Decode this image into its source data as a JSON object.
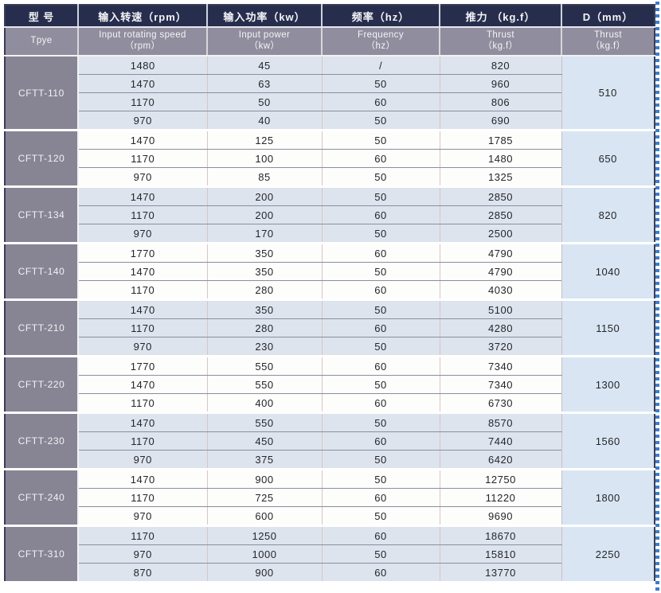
{
  "colors": {
    "header_navy": "#272e4d",
    "header_gray": "#908d9e",
    "model_column": "#878494",
    "row_blue": "#dde4ee",
    "row_white": "#fdfdfb",
    "d_column_blue": "#d9e5f2",
    "row_divider": "#87909f",
    "page_edge_dash_blue": "#3d7ccb"
  },
  "table": {
    "columns_row1": [
      "型 号",
      "输入转速（rpm）",
      "输入功率（kw）",
      "频率（hz）",
      "推力 （kg.f）",
      "D（mm）"
    ],
    "columns_row2": [
      {
        "l1": "Tpye",
        "l2": ""
      },
      {
        "l1": "Input rotating speed",
        "l2": "（rpm）"
      },
      {
        "l1": "Input power",
        "l2": "（kw）"
      },
      {
        "l1": "Frequency",
        "l2": "（hz）"
      },
      {
        "l1": "Thrust",
        "l2": "（kg.f）"
      },
      {
        "l1": "Thrust",
        "l2": "（kg.f）"
      }
    ],
    "groups": [
      {
        "model": "CFTT-110",
        "d": "510",
        "rows": [
          [
            "1480",
            "45",
            "/",
            "820"
          ],
          [
            "1470",
            "63",
            "50",
            "960"
          ],
          [
            "1170",
            "50",
            "60",
            "806"
          ],
          [
            "970",
            "40",
            "50",
            "690"
          ]
        ]
      },
      {
        "model": "CFTT-120",
        "d": "650",
        "rows": [
          [
            "1470",
            "125",
            "50",
            "1785"
          ],
          [
            "1170",
            "100",
            "60",
            "1480"
          ],
          [
            "970",
            "85",
            "50",
            "1325"
          ]
        ]
      },
      {
        "model": "CFTT-134",
        "d": "820",
        "rows": [
          [
            "1470",
            "200",
            "50",
            "2850"
          ],
          [
            "1170",
            "200",
            "60",
            "2850"
          ],
          [
            "970",
            "170",
            "50",
            "2500"
          ]
        ]
      },
      {
        "model": "CFTT-140",
        "d": "1040",
        "rows": [
          [
            "1770",
            "350",
            "60",
            "4790"
          ],
          [
            "1470",
            "350",
            "50",
            "4790"
          ],
          [
            "1170",
            "280",
            "60",
            "4030"
          ]
        ]
      },
      {
        "model": "CFTT-210",
        "d": "1150",
        "rows": [
          [
            "1470",
            "350",
            "50",
            "5100"
          ],
          [
            "1170",
            "280",
            "60",
            "4280"
          ],
          [
            "970",
            "230",
            "50",
            "3720"
          ]
        ]
      },
      {
        "model": "CFTT-220",
        "d": "1300",
        "rows": [
          [
            "1770",
            "550",
            "60",
            "7340"
          ],
          [
            "1470",
            "550",
            "50",
            "7340"
          ],
          [
            "1170",
            "400",
            "60",
            "6730"
          ]
        ]
      },
      {
        "model": "CFTT-230",
        "d": "1560",
        "rows": [
          [
            "1470",
            "550",
            "50",
            "8570"
          ],
          [
            "1170",
            "450",
            "60",
            "7440"
          ],
          [
            "970",
            "375",
            "50",
            "6420"
          ]
        ]
      },
      {
        "model": "CFTT-240",
        "d": "1800",
        "rows": [
          [
            "1470",
            "900",
            "50",
            "12750"
          ],
          [
            "1170",
            "725",
            "60",
            "11220"
          ],
          [
            "970",
            "600",
            "50",
            "9690"
          ]
        ]
      },
      {
        "model": "CFTT-310",
        "d": "2250",
        "rows": [
          [
            "1170",
            "1250",
            "60",
            "18670"
          ],
          [
            "970",
            "1000",
            "50",
            "15810"
          ],
          [
            "870",
            "900",
            "60",
            "13770"
          ]
        ]
      }
    ]
  }
}
